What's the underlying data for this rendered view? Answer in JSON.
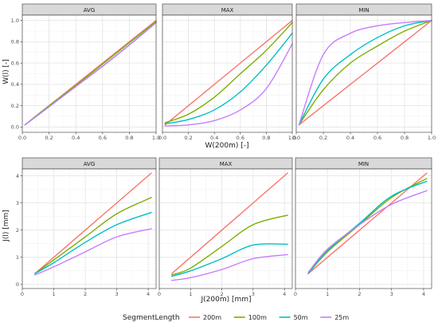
{
  "legend": {
    "title": "SegmentLength",
    "placement": "bottom",
    "entries": [
      {
        "name": "200m",
        "color": "#F8766D"
      },
      {
        "name": "100m",
        "color": "#7CAE00"
      },
      {
        "name": "50m",
        "color": "#00BFC4"
      },
      {
        "name": "25m",
        "color": "#C77CFF"
      }
    ]
  },
  "chart_data": [
    {
      "type": "line",
      "facet_row": "top",
      "xlabel": "W(200m) [-]",
      "ylabel": "W(l) [-]",
      "xlim": [
        0,
        1
      ],
      "ylim": [
        -0.05,
        1.05
      ],
      "xticks": [
        0.0,
        0.2,
        0.4,
        0.6,
        0.8,
        1.0
      ],
      "yticks": [
        0.0,
        0.2,
        0.4,
        0.6,
        0.8,
        1.0
      ],
      "tick_labels_x": [
        "0.0",
        "0.2",
        "0.4",
        "0.6",
        "0.8",
        "1.0"
      ],
      "tick_labels_y": [
        "0.0",
        "0.2",
        "0.4",
        "0.6",
        "0.8",
        "1.0"
      ],
      "grid": true,
      "panels": [
        {
          "strip": "AVG",
          "x": [
            0.02,
            0.2,
            0.4,
            0.6,
            0.8,
            1.0
          ],
          "series": [
            {
              "name": "200m",
              "values": [
                0.02,
                0.2,
                0.4,
                0.6,
                0.8,
                1.0
              ]
            },
            {
              "name": "100m",
              "values": [
                0.02,
                0.2,
                0.39,
                0.59,
                0.79,
                0.99
              ]
            },
            {
              "name": "50m",
              "values": [
                0.02,
                0.19,
                0.38,
                0.57,
                0.77,
                0.98
              ]
            },
            {
              "name": "25m",
              "values": [
                0.02,
                0.19,
                0.38,
                0.57,
                0.77,
                0.98
              ]
            }
          ]
        },
        {
          "strip": "MAX",
          "x": [
            0.02,
            0.2,
            0.4,
            0.6,
            0.8,
            1.0
          ],
          "series": [
            {
              "name": "200m",
              "values": [
                0.02,
                0.2,
                0.4,
                0.6,
                0.8,
                1.0
              ]
            },
            {
              "name": "100m",
              "values": [
                0.04,
                0.12,
                0.28,
                0.5,
                0.72,
                0.98
              ]
            },
            {
              "name": "50m",
              "values": [
                0.03,
                0.07,
                0.16,
                0.33,
                0.58,
                0.88
              ]
            },
            {
              "name": "25m",
              "values": [
                0.01,
                0.02,
                0.06,
                0.16,
                0.36,
                0.78
              ]
            }
          ]
        },
        {
          "strip": "MIN",
          "x": [
            0.02,
            0.2,
            0.4,
            0.6,
            0.8,
            1.0
          ],
          "series": [
            {
              "name": "200m",
              "values": [
                0.02,
                0.2,
                0.4,
                0.6,
                0.8,
                1.0
              ]
            },
            {
              "name": "100m",
              "values": [
                0.02,
                0.35,
                0.6,
                0.76,
                0.9,
                1.0
              ]
            },
            {
              "name": "50m",
              "values": [
                0.02,
                0.45,
                0.68,
                0.84,
                0.95,
                1.0
              ]
            },
            {
              "name": "25m",
              "values": [
                0.02,
                0.68,
                0.88,
                0.95,
                0.98,
                1.0
              ]
            }
          ]
        }
      ]
    },
    {
      "type": "line",
      "facet_row": "bottom",
      "xlabel": "J(200m) [mm]",
      "ylabel": "J(l) [mm]",
      "xlim": [
        0,
        4.25
      ],
      "ylim": [
        -0.15,
        4.25
      ],
      "xticks": [
        0,
        1,
        2,
        3,
        4
      ],
      "yticks": [
        0,
        1,
        2,
        3,
        4
      ],
      "tick_labels_x": [
        "0",
        "1",
        "2",
        "3",
        "4"
      ],
      "tick_labels_y": [
        "0",
        "1",
        "2",
        "3",
        "4"
      ],
      "grid": true,
      "panels": [
        {
          "strip": "AVG",
          "x": [
            0.4,
            1.0,
            2.0,
            3.0,
            4.1
          ],
          "series": [
            {
              "name": "200m",
              "values": [
                0.4,
                1.0,
                2.0,
                3.0,
                4.1
              ]
            },
            {
              "name": "100m",
              "values": [
                0.4,
                0.9,
                1.75,
                2.6,
                3.2
              ]
            },
            {
              "name": "50m",
              "values": [
                0.4,
                0.8,
                1.55,
                2.2,
                2.65
              ]
            },
            {
              "name": "25m",
              "values": [
                0.35,
                0.65,
                1.2,
                1.75,
                2.05
              ]
            }
          ]
        },
        {
          "strip": "MAX",
          "x": [
            0.4,
            1.0,
            2.0,
            3.0,
            4.1
          ],
          "series": [
            {
              "name": "200m",
              "values": [
                0.4,
                1.0,
                2.0,
                3.0,
                4.1
              ]
            },
            {
              "name": "100m",
              "values": [
                0.35,
                0.6,
                1.4,
                2.2,
                2.55
              ]
            },
            {
              "name": "50m",
              "values": [
                0.3,
                0.5,
                0.95,
                1.45,
                1.48
              ]
            },
            {
              "name": "25m",
              "values": [
                0.15,
                0.25,
                0.55,
                0.95,
                1.1
              ]
            }
          ]
        },
        {
          "strip": "MIN",
          "x": [
            0.4,
            1.0,
            2.0,
            3.0,
            4.1
          ],
          "series": [
            {
              "name": "200m",
              "values": [
                0.4,
                1.0,
                2.0,
                3.0,
                4.1
              ]
            },
            {
              "name": "100m",
              "values": [
                0.4,
                1.2,
                2.2,
                3.2,
                3.9
              ]
            },
            {
              "name": "50m",
              "values": [
                0.4,
                1.25,
                2.25,
                3.25,
                3.8
              ]
            },
            {
              "name": "25m",
              "values": [
                0.45,
                1.3,
                2.2,
                2.95,
                3.45
              ]
            }
          ]
        }
      ]
    }
  ]
}
